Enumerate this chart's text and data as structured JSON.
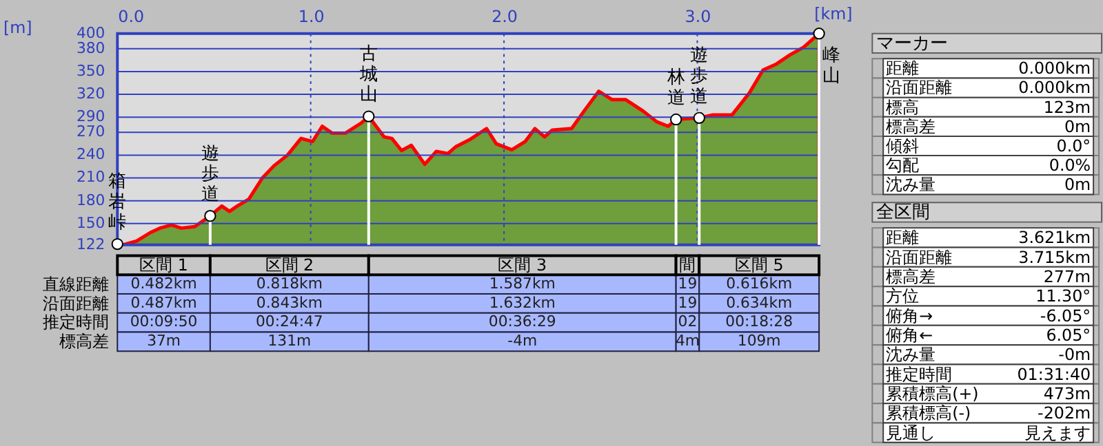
{
  "chart_data": [
    {
      "type": "area",
      "xlabel": "[km]",
      "ylabel": "[m]",
      "x": [
        0,
        0.03,
        0.1,
        0.17,
        0.22,
        0.28,
        0.33,
        0.4,
        0.48,
        0.54,
        0.58,
        0.62,
        0.68,
        0.75,
        0.81,
        0.88,
        0.95,
        1.01,
        1.06,
        1.11,
        1.18,
        1.26,
        1.3,
        1.38,
        1.42,
        1.47,
        1.52,
        1.59,
        1.65,
        1.71,
        1.75,
        1.82,
        1.91,
        1.96,
        2.04,
        2.11,
        2.16,
        2.21,
        2.25,
        2.35,
        2.42,
        2.49,
        2.56,
        2.63,
        2.72,
        2.79,
        2.85,
        2.89,
        3.01,
        3.08,
        3.18,
        3.27,
        3.34,
        3.41,
        3.48,
        3.55,
        3.63
      ],
      "series": [
        {
          "color": "#6f9e3c",
          "values": [
            123,
            122,
            127,
            138,
            144,
            148,
            144,
            146,
            160,
            173,
            166,
            173,
            182,
            210,
            226,
            240,
            262,
            258,
            278,
            269,
            269,
            282,
            291,
            264,
            262,
            246,
            253,
            228,
            245,
            242,
            251,
            260,
            275,
            255,
            247,
            258,
            275,
            264,
            273,
            275,
            300,
            324,
            313,
            313,
            298,
            284,
            278,
            287,
            289,
            293,
            293,
            322,
            352,
            360,
            372,
            382,
            400
          ]
        }
      ],
      "xlim": [
        0,
        3.63
      ],
      "ylim": [
        122,
        400
      ],
      "xticks": [
        {
          "value": 0,
          "label": "0.0"
        },
        {
          "value": 1,
          "label": "1.0"
        },
        {
          "value": 2,
          "label": "2.0"
        },
        {
          "value": 3,
          "label": "3.0"
        }
      ],
      "yticks": [
        122,
        150,
        180,
        210,
        240,
        270,
        290,
        320,
        350,
        380,
        400
      ],
      "grid": true,
      "annotations": [
        {
          "text": "箱岩峠",
          "x": 0,
          "y": 123
        },
        {
          "text": "遊歩道",
          "x": 0.48,
          "y": 160
        },
        {
          "text": "古城山",
          "x": 1.3,
          "y": 291
        },
        {
          "text": "林道",
          "x": 2.89,
          "y": 287
        },
        {
          "text": "遊歩道",
          "x": 3.01,
          "y": 289
        },
        {
          "text": "峰山",
          "x": 3.63,
          "y": 400
        }
      ]
    },
    {
      "type": "other",
      "categories": [
        "区間 1",
        "区間 2",
        "区間 3",
        "間",
        "区間 5"
      ],
      "y_categories": [
        "直線距離",
        "沿面距離",
        "推定時間",
        "標高差"
      ],
      "cell_labels": [
        [
          "0.482km",
          "0.818km",
          "1.587km",
          "19",
          "0.616km"
        ],
        [
          "0.487km",
          "0.843km",
          "1.632km",
          "19",
          "0.634km"
        ],
        [
          "00:09:50",
          "00:24:47",
          "00:36:29",
          "02",
          "00:18:28"
        ],
        [
          "37m",
          "131m",
          "-4m",
          "4m",
          "109m"
        ]
      ]
    },
    {
      "type": "other",
      "title": "マーカー",
      "y_categories": [
        "距離",
        "沿面距離",
        "標高",
        "標高差",
        "傾斜",
        "勾配",
        "沈み量"
      ],
      "cell_labels": [
        [
          "0.000km"
        ],
        [
          "0.000km"
        ],
        [
          "123m"
        ],
        [
          "0m"
        ],
        [
          "0.0°"
        ],
        [
          "0.0%"
        ],
        [
          "0m"
        ]
      ]
    },
    {
      "type": "other",
      "title": "全区間",
      "y_categories": [
        "距離",
        "沿面距離",
        "標高差",
        "方位",
        "俯角→",
        "俯角←",
        "沈み量",
        "推定時間",
        "累積標高(+)",
        "累積標高(-)",
        "見通し"
      ],
      "cell_labels": [
        [
          "3.621km"
        ],
        [
          "3.715km"
        ],
        [
          "277m"
        ],
        [
          "11.30°"
        ],
        [
          "-6.05°"
        ],
        [
          "6.05°"
        ],
        [
          "-0m"
        ],
        [
          "01:31:40"
        ],
        [
          "473m"
        ],
        [
          "-202m"
        ],
        [
          "見えます"
        ]
      ]
    }
  ]
}
